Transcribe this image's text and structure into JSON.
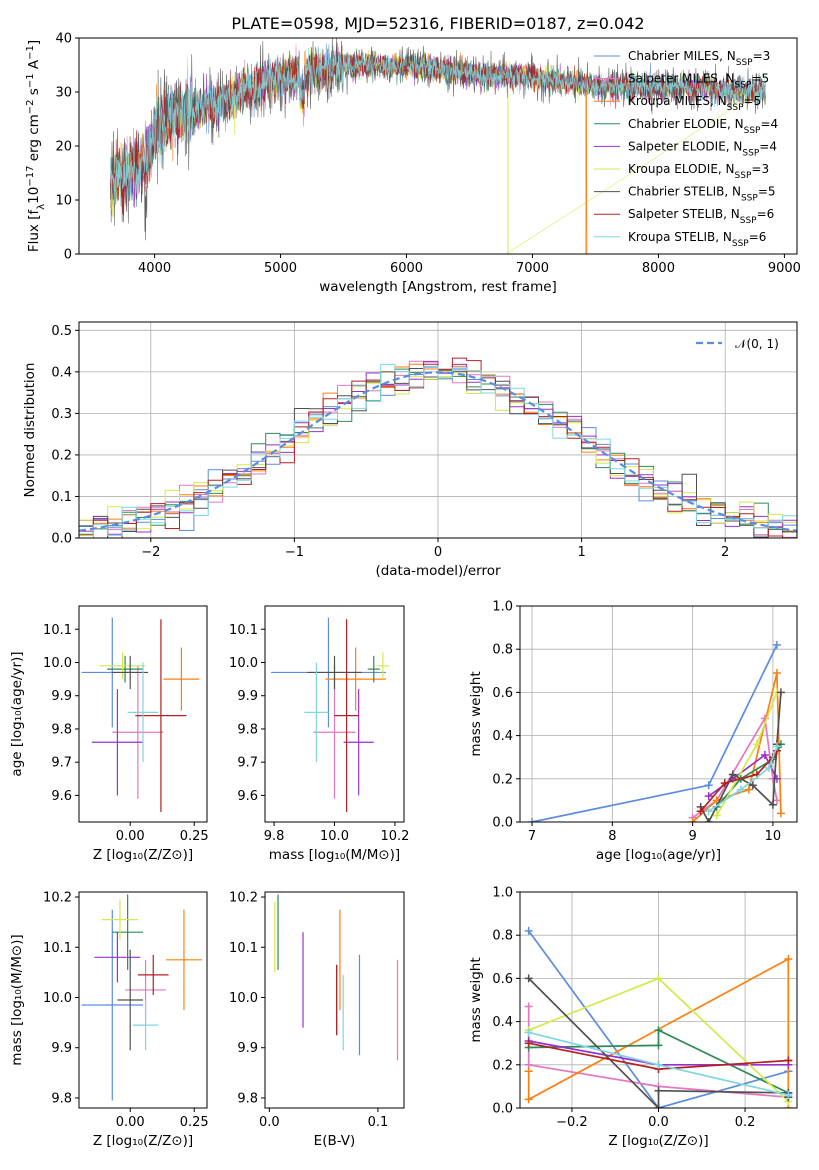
{
  "figure": {
    "title": "PLATE=0598, MJD=52316, FIBERID=0187, z=0.042"
  },
  "colors": {
    "Chabrier MILES": "#5b8ce0",
    "Salpeter MILES": "#e377c2",
    "Kroupa MILES": "#ff7f0e",
    "Chabrier ELODIE": "#2e8b57",
    "Salpeter ELODIE": "#9932cc",
    "Kroupa ELODIE": "#d4e84a",
    "Chabrier STELIB": "#505050",
    "Salpeter STELIB": "#b22222",
    "Kroupa STELIB": "#7fd6e0",
    "normal": "#5b8ce0"
  },
  "chart_data": [
    {
      "type": "line",
      "panel": "spectrum",
      "title": "PLATE=0598, MJD=52316, FIBERID=0187, z=0.042",
      "xlabel": "wavelength [Angstrom, rest frame]",
      "ylabel_parts": [
        "Flux [f",
        "λ",
        "10",
        "−17",
        " erg cm",
        "−2",
        " s",
        "−1",
        " A",
        "−1",
        "]"
      ],
      "xlim": [
        3400,
        9100
      ],
      "ylim": [
        0,
        40
      ],
      "xticks": [
        4000,
        5000,
        6000,
        7000,
        8000,
        9000
      ],
      "yticks": [
        0,
        10,
        20,
        30,
        40
      ],
      "continuum": {
        "x": [
          3650,
          3700,
          3800,
          3900,
          3950,
          4000,
          4100,
          4200,
          4300,
          4400,
          4500,
          4700,
          4900,
          5100,
          5300,
          5500,
          5800,
          6000,
          6300,
          6600,
          6900,
          7200,
          7500,
          7800,
          8200,
          8600,
          8850
        ],
        "y": [
          13,
          14,
          15,
          17,
          18,
          23,
          25,
          26,
          26,
          27,
          28,
          30,
          32,
          33,
          34,
          35,
          35,
          35,
          34,
          33,
          33,
          32,
          31,
          31,
          31,
          30,
          30
        ]
      },
      "legend_location": "upper right",
      "legend": [
        {
          "base": "Chabrier MILES, N",
          "sub": "SSP",
          "tail": "=3"
        },
        {
          "base": "Salpeter MILES, N",
          "sub": "SSP",
          "tail": "=5"
        },
        {
          "base": "Kroupa MILES, N",
          "sub": "SSP",
          "tail": "=5"
        },
        {
          "base": "Chabrier ELODIE, N",
          "sub": "SSP",
          "tail": "=4"
        },
        {
          "base": "Salpeter ELODIE, N",
          "sub": "SSP",
          "tail": "=4"
        },
        {
          "base": "Kroupa ELODIE, N",
          "sub": "SSP",
          "tail": "=3"
        },
        {
          "base": "Chabrier STELIB, N",
          "sub": "SSP",
          "tail": "=5"
        },
        {
          "base": "Salpeter STELIB, N",
          "sub": "SSP",
          "tail": "=6"
        },
        {
          "base": "Kroupa STELIB, N",
          "sub": "SSP",
          "tail": "=6"
        }
      ]
    },
    {
      "type": "line",
      "panel": "residual histogram",
      "xlabel": "(data-model)/error",
      "ylabel": "Normed distribution",
      "xlim": [
        -2.5,
        2.5
      ],
      "ylim": [
        0,
        0.52
      ],
      "xticks": [
        -2,
        -1,
        0,
        1,
        2
      ],
      "xtick_labels": [
        "−2",
        "−1",
        "0",
        "1",
        "2"
      ],
      "yticks": [
        0.0,
        0.1,
        0.2,
        0.3,
        0.4,
        0.5
      ],
      "ytick_labels": [
        "0.0",
        "0.1",
        "0.2",
        "0.3",
        "0.4",
        "0.5"
      ],
      "grid": true,
      "legend_location": "upper right",
      "legend_label": "𝒩(0, 1)",
      "bin_width": 0.1
    },
    {
      "type": "scatter",
      "panel": "age vs Z",
      "xlabel": "Z [log₁₀(Z/Z⊙)]",
      "ylabel": "age  [log₁₀(age/yr)]",
      "xlim": [
        -0.2,
        0.3
      ],
      "ylim": [
        9.52,
        10.17
      ],
      "xticks": [
        0.0,
        0.25
      ],
      "xtick_labels": [
        "0.00",
        "0.25"
      ],
      "yticks": [
        9.6,
        9.7,
        9.8,
        9.9,
        10.0,
        10.1
      ],
      "ytick_labels": [
        "9.6",
        "9.7",
        "9.8",
        "9.9",
        "10.0",
        "10.1"
      ],
      "points": [
        {
          "library": "Chabrier MILES",
          "x": -0.07,
          "xerr": 0.12,
          "y": 9.97,
          "yerr": 0.165
        },
        {
          "library": "Salpeter MILES",
          "x": 0.03,
          "xerr": 0.1,
          "y": 9.79,
          "yerr": 0.2
        },
        {
          "library": "Kroupa MILES",
          "x": 0.2,
          "xerr": 0.07,
          "y": 9.95,
          "yerr": 0.095
        },
        {
          "library": "Chabrier ELODIE",
          "x": -0.02,
          "xerr": 0.07,
          "y": 9.98,
          "yerr": 0.04
        },
        {
          "library": "Salpeter ELODIE",
          "x": -0.05,
          "xerr": 0.1,
          "y": 9.76,
          "yerr": 0.16
        },
        {
          "library": "Kroupa ELODIE",
          "x": -0.03,
          "xerr": 0.09,
          "y": 9.99,
          "yerr": 0.04
        },
        {
          "library": "Chabrier STELIB",
          "x": 0.0,
          "xerr": 0.07,
          "y": 9.97,
          "yerr": 0.05
        },
        {
          "library": "Salpeter STELIB",
          "x": 0.12,
          "xerr": 0.1,
          "y": 9.84,
          "yerr": 0.29
        },
        {
          "library": "Kroupa STELIB",
          "x": 0.05,
          "xerr": 0.06,
          "y": 9.85,
          "yerr": 0.15
        }
      ]
    },
    {
      "type": "scatter",
      "panel": "age vs mass",
      "xlabel": "mass [log₁₀(M/M⊙)]",
      "xlim": [
        9.77,
        10.23
      ],
      "ylim": [
        9.52,
        10.17
      ],
      "xticks": [
        9.8,
        10.0,
        10.2
      ],
      "xtick_labels": [
        "9.8",
        "10.0",
        "10.2"
      ],
      "yticks": [
        9.6,
        9.7,
        9.8,
        9.9,
        10.0,
        10.1
      ],
      "ytick_labels": [
        "9.6",
        "9.7",
        "9.8",
        "9.9",
        "10.0",
        "10.1"
      ],
      "points": [
        {
          "library": "Chabrier MILES",
          "x": 9.98,
          "xerr": 0.19,
          "y": 9.97,
          "yerr": 0.165
        },
        {
          "library": "Salpeter MILES",
          "x": 10.0,
          "xerr": 0.07,
          "y": 9.79,
          "yerr": 0.2
        },
        {
          "library": "Kroupa MILES",
          "x": 10.07,
          "xerr": 0.1,
          "y": 9.95,
          "yerr": 0.095
        },
        {
          "library": "Chabrier ELODIE",
          "x": 10.13,
          "xerr": 0.02,
          "y": 9.98,
          "yerr": 0.04
        },
        {
          "library": "Salpeter ELODIE",
          "x": 10.08,
          "xerr": 0.05,
          "y": 9.76,
          "yerr": 0.16
        },
        {
          "library": "Kroupa ELODIE",
          "x": 10.16,
          "xerr": 0.02,
          "y": 9.99,
          "yerr": 0.04
        },
        {
          "library": "Chabrier STELIB",
          "x": 10.0,
          "xerr": 0.09,
          "y": 9.97,
          "yerr": 0.05
        },
        {
          "library": "Salpeter STELIB",
          "x": 10.04,
          "xerr": 0.04,
          "y": 9.84,
          "yerr": 0.29
        },
        {
          "library": "Kroupa STELIB",
          "x": 9.94,
          "xerr": 0.04,
          "y": 9.85,
          "yerr": 0.15
        }
      ]
    },
    {
      "type": "line",
      "panel": "mass weight vs age",
      "xlabel": "age  [log₁₀(age/yr)]",
      "ylabel": "mass weight",
      "xlim": [
        6.85,
        10.3
      ],
      "ylim": [
        0,
        1
      ],
      "xticks": [
        7,
        8,
        9,
        10
      ],
      "xtick_labels": [
        "7",
        "8",
        "9",
        "10"
      ],
      "yticks": [
        0.0,
        0.2,
        0.4,
        0.6,
        0.8,
        1.0
      ],
      "ytick_labels": [
        "0.0",
        "0.2",
        "0.4",
        "0.6",
        "0.8",
        "1.0"
      ],
      "grid": true,
      "series": [
        {
          "library": "Chabrier MILES",
          "x": [
            7.0,
            9.2,
            10.05
          ],
          "y": [
            0.0,
            0.17,
            0.82
          ]
        },
        {
          "library": "Salpeter MILES",
          "x": [
            9.0,
            9.3,
            9.9,
            10.0,
            10.05
          ],
          "y": [
            0.02,
            0.1,
            0.48,
            0.2,
            0.1
          ]
        },
        {
          "library": "Kroupa MILES",
          "x": [
            9.0,
            9.3,
            9.7,
            10.05,
            10.1
          ],
          "y": [
            0.0,
            0.1,
            0.15,
            0.69,
            0.04
          ]
        },
        {
          "library": "Chabrier ELODIE",
          "x": [
            9.3,
            9.6,
            10.0,
            10.1
          ],
          "y": [
            0.07,
            0.2,
            0.29,
            0.36
          ]
        },
        {
          "library": "Salpeter ELODIE",
          "x": [
            9.2,
            9.5,
            9.9,
            10.05
          ],
          "y": [
            0.12,
            0.2,
            0.31,
            0.2
          ]
        },
        {
          "library": "Kroupa ELODIE",
          "x": [
            9.3,
            9.8,
            10.05
          ],
          "y": [
            0.03,
            0.36,
            0.6
          ]
        },
        {
          "library": "Chabrier STELIB",
          "x": [
            9.1,
            9.2,
            9.5,
            9.75,
            10.0,
            10.05,
            10.1
          ],
          "y": [
            0.07,
            0.0,
            0.22,
            0.17,
            0.08,
            0.36,
            0.6
          ]
        },
        {
          "library": "Salpeter STELIB",
          "x": [
            9.1,
            9.4,
            9.8,
            10.0,
            10.05
          ],
          "y": [
            0.05,
            0.18,
            0.22,
            0.3,
            0.33
          ]
        },
        {
          "library": "Kroupa STELIB",
          "x": [
            9.2,
            9.6,
            9.95,
            10.05
          ],
          "y": [
            0.05,
            0.15,
            0.25,
            0.35
          ]
        }
      ]
    },
    {
      "type": "scatter",
      "panel": "mass vs Z",
      "xlabel": "Z [log₁₀(Z/Z⊙)]",
      "ylabel": "mass [log₁₀(M/M⊙)]",
      "xlim": [
        -0.2,
        0.3
      ],
      "ylim": [
        9.78,
        10.21
      ],
      "xticks": [
        0.0,
        0.25
      ],
      "xtick_labels": [
        "0.00",
        "0.25"
      ],
      "yticks": [
        9.8,
        9.9,
        10.0,
        10.1,
        10.2
      ],
      "ytick_labels": [
        "9.8",
        "9.9",
        "10.0",
        "10.1",
        "10.2"
      ],
      "points": [
        {
          "library": "Chabrier MILES",
          "x": -0.07,
          "xerr": 0.12,
          "y": 9.985,
          "yerr": 0.19
        },
        {
          "library": "Salpeter MILES",
          "x": 0.06,
          "xerr": 0.08,
          "y": 10.015,
          "yerr": 0.06
        },
        {
          "library": "Kroupa MILES",
          "x": 0.21,
          "xerr": 0.07,
          "y": 10.075,
          "yerr": 0.1
        },
        {
          "library": "Chabrier ELODIE",
          "x": -0.01,
          "xerr": 0.06,
          "y": 10.13,
          "yerr": 0.075
        },
        {
          "library": "Salpeter ELODIE",
          "x": -0.05,
          "xerr": 0.09,
          "y": 10.08,
          "yerr": 0.05
        },
        {
          "library": "Kroupa ELODIE",
          "x": -0.04,
          "xerr": 0.07,
          "y": 10.155,
          "yerr": 0.04
        },
        {
          "library": "Chabrier STELIB",
          "x": 0.0,
          "xerr": 0.05,
          "y": 9.995,
          "yerr": 0.1
        },
        {
          "library": "Salpeter STELIB",
          "x": 0.09,
          "xerr": 0.06,
          "y": 10.045,
          "yerr": 0.04
        },
        {
          "library": "Kroupa STELIB",
          "x": 0.06,
          "xerr": 0.05,
          "y": 9.945,
          "yerr": 0.05
        }
      ]
    },
    {
      "type": "scatter",
      "panel": "mass vs E(B-V)",
      "xlabel": "E(B-V)",
      "xlim": [
        -0.004,
        0.124
      ],
      "ylim": [
        9.78,
        10.21
      ],
      "xticks": [
        0.0,
        0.1
      ],
      "xtick_labels": [
        "0.0",
        "0.1"
      ],
      "yticks": [
        9.8,
        9.9,
        10.0,
        10.1,
        10.2
      ],
      "ytick_labels": [
        "9.8",
        "9.9",
        "10.0",
        "10.1",
        "10.2"
      ],
      "points": [
        {
          "library": "Chabrier MILES",
          "x": 0.083,
          "y": 9.985,
          "yerr": 0.1
        },
        {
          "library": "Salpeter MILES",
          "x": 0.118,
          "y": 9.975,
          "yerr": 0.1
        },
        {
          "library": "Kroupa MILES",
          "x": 0.065,
          "y": 10.075,
          "yerr": 0.1
        },
        {
          "library": "Chabrier ELODIE",
          "x": 0.008,
          "y": 10.13,
          "yerr": 0.075
        },
        {
          "library": "Salpeter ELODIE",
          "x": 0.031,
          "y": 10.035,
          "yerr": 0.095
        },
        {
          "library": "Kroupa ELODIE",
          "x": 0.005,
          "y": 10.12,
          "yerr": 0.07
        },
        {
          "library": "Chabrier STELIB",
          "x": 0.062,
          "y": 9.995,
          "yerr": 0.07
        },
        {
          "library": "Salpeter STELIB",
          "x": 0.062,
          "y": 9.995,
          "yerr": 0.07
        },
        {
          "library": "Kroupa STELIB",
          "x": 0.068,
          "y": 9.97,
          "yerr": 0.075
        }
      ]
    },
    {
      "type": "line",
      "panel": "mass weight vs Z",
      "xlabel": "Z [log₁₀(Z/Z⊙)]",
      "ylabel": "mass weight",
      "xlim": [
        -0.32,
        0.32
      ],
      "ylim": [
        0,
        1
      ],
      "xticks": [
        -0.2,
        0.0,
        0.2
      ],
      "xtick_labels": [
        "−0.2",
        "0.0",
        "0.2"
      ],
      "yticks": [
        0.0,
        0.2,
        0.4,
        0.6,
        0.8,
        1.0
      ],
      "ytick_labels": [
        "0.0",
        "0.2",
        "0.4",
        "0.6",
        "0.8",
        "1.0"
      ],
      "grid": true,
      "series": [
        {
          "library": "Chabrier MILES",
          "x": [
            -0.3,
            0.0,
            0.3,
            0.3
          ],
          "y": [
            0.82,
            0.0,
            0.17,
            0.17
          ]
        },
        {
          "library": "Salpeter MILES",
          "x": [
            -0.3,
            -0.3,
            0.0,
            0.3
          ],
          "y": [
            0.47,
            0.2,
            0.1,
            0.05
          ]
        },
        {
          "library": "Kroupa MILES",
          "x": [
            -0.3,
            -0.3,
            0.3,
            0.3
          ],
          "y": [
            0.17,
            0.04,
            0.69,
            0.0
          ]
        },
        {
          "library": "Chabrier ELODIE",
          "x": [
            -0.3,
            0.0,
            0.0,
            0.3
          ],
          "y": [
            0.28,
            0.29,
            0.36,
            0.07
          ]
        },
        {
          "library": "Salpeter ELODIE",
          "x": [
            -0.3,
            0.0,
            0.3
          ],
          "y": [
            0.31,
            0.2,
            0.2
          ]
        },
        {
          "library": "Kroupa ELODIE",
          "x": [
            -0.3,
            0.0,
            0.3
          ],
          "y": [
            0.36,
            0.6,
            0.03
          ]
        },
        {
          "library": "Chabrier STELIB",
          "x": [
            -0.3,
            0.0,
            0.0,
            0.3,
            0.3
          ],
          "y": [
            0.6,
            0.0,
            0.08,
            0.07,
            0.05
          ]
        },
        {
          "library": "Salpeter STELIB",
          "x": [
            -0.3,
            0.0,
            0.3,
            0.3
          ],
          "y": [
            0.3,
            0.18,
            0.22,
            0.22
          ]
        },
        {
          "library": "Kroupa STELIB",
          "x": [
            -0.3,
            0.0,
            0.3
          ],
          "y": [
            0.35,
            0.2,
            0.06
          ]
        }
      ]
    }
  ]
}
